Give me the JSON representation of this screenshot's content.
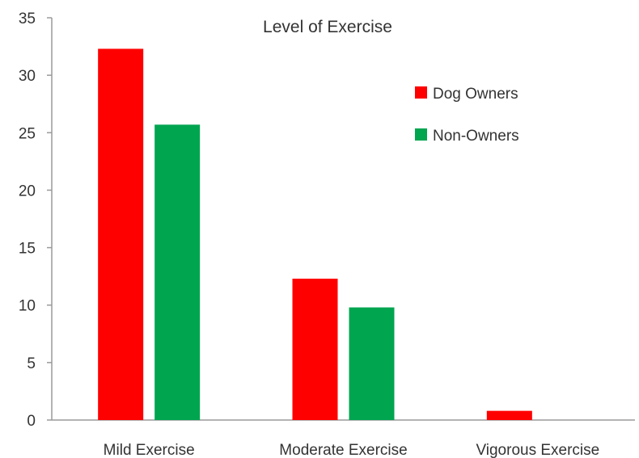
{
  "chart_data": {
    "type": "bar",
    "title": "Level of Exercise",
    "categories": [
      "Mild Exercise",
      "Moderate Exercise",
      "Vigorous Exercise"
    ],
    "series": [
      {
        "name": "Dog Owners",
        "color": "#ff0000",
        "values": [
          32.3,
          12.3,
          0.8
        ]
      },
      {
        "name": "Non-Owners",
        "color": "#00a550",
        "values": [
          25.7,
          9.8,
          0
        ]
      }
    ],
    "ylim": [
      0,
      35
    ],
    "yticks": [
      0,
      5,
      10,
      15,
      20,
      25,
      30,
      35
    ],
    "grid": false,
    "legend": "top-right"
  }
}
